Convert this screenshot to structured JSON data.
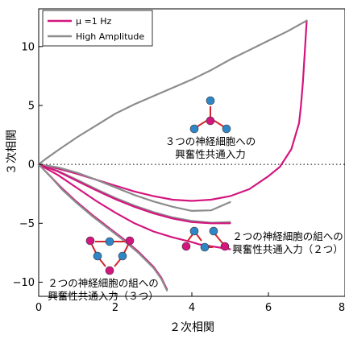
{
  "chart_data": {
    "type": "line",
    "xlabel": "２次相関",
    "ylabel": "３次相関",
    "xlim": [
      0,
      8
    ],
    "ylim": [
      -11.2,
      13.2
    ],
    "x_ticks": [
      "0",
      "2",
      "4",
      "6",
      "8"
    ],
    "y_ticks": [
      "10",
      "5",
      "0",
      "−5",
      "−10"
    ],
    "x_tick_values": [
      0,
      2,
      4,
      6,
      8
    ],
    "y_tick_values": [
      10,
      5,
      0,
      -5,
      -10
    ],
    "legend_placement": "top-left",
    "zero_line": "dotted",
    "colors": {
      "mu": "#d4157e",
      "high": "#8c8c8c",
      "node_blue": "#2f86c7",
      "node_pink": "#d4157e",
      "edge": "#d2262e"
    },
    "series": [
      {
        "name": "μ =1 Hz",
        "color": "#d4157e",
        "width": 2.2,
        "x": [
          0,
          0.5,
          1,
          1.5,
          2,
          2.5,
          3,
          3.5,
          4,
          4.5,
          5,
          5.5,
          6,
          6.3,
          6.6,
          6.8,
          6.85,
          6.9,
          6.95,
          7.0
        ],
        "y": [
          0,
          -0.35,
          -0.8,
          -1.3,
          -1.8,
          -2.3,
          -2.7,
          -3.0,
          -3.1,
          -3.0,
          -2.7,
          -2.1,
          -1.0,
          -0.2,
          1.3,
          3.5,
          5.0,
          7.0,
          9.5,
          12.2
        ]
      },
      {
        "name": "High Amplitude",
        "color": "#8c8c8c",
        "width": 2.2,
        "x": [
          0,
          0.2,
          0.5,
          1,
          1.5,
          2,
          2.5,
          3,
          3.5,
          4,
          4.5,
          5,
          5.5,
          6,
          6.5,
          7.0
        ],
        "y": [
          0,
          0.5,
          1.2,
          2.3,
          3.3,
          4.3,
          5.1,
          5.8,
          6.5,
          7.2,
          8.0,
          8.9,
          9.7,
          10.5,
          11.3,
          12.2
        ]
      },
      {
        "name": "",
        "color": "#8c8c8c",
        "width": 2.2,
        "x": [
          0,
          0.5,
          1,
          1.5,
          2,
          2.5,
          3,
          3.5,
          4,
          4.5,
          5
        ],
        "y": [
          0,
          -0.25,
          -0.7,
          -1.3,
          -1.95,
          -2.6,
          -3.15,
          -3.6,
          -3.95,
          -3.9,
          -3.2
        ]
      },
      {
        "name": "",
        "color": "#8c8c8c",
        "width": 2.2,
        "x": [
          0,
          0.5,
          1,
          1.5,
          2,
          2.5,
          3,
          3.5,
          4,
          4.5,
          5
        ],
        "y": [
          0,
          -0.55,
          -1.3,
          -2.1,
          -2.85,
          -3.5,
          -4.05,
          -4.5,
          -4.8,
          -4.95,
          -4.9
        ]
      },
      {
        "name": "",
        "color": "#d4157e",
        "width": 2.2,
        "x": [
          0,
          0.5,
          1,
          1.5,
          2,
          2.5,
          3,
          3.5,
          4,
          4.5,
          5
        ],
        "y": [
          0,
          -0.6,
          -1.4,
          -2.2,
          -2.95,
          -3.6,
          -4.15,
          -4.6,
          -4.9,
          -5.0,
          -5.0
        ]
      },
      {
        "name": "",
        "color": "#d4157e",
        "width": 2.2,
        "x": [
          0,
          0.5,
          1,
          1.5,
          2,
          2.5,
          3,
          3.5,
          4,
          4.2,
          4.4,
          4.6,
          4.8,
          5.0
        ],
        "y": [
          0,
          -0.9,
          -2.0,
          -3.1,
          -4.1,
          -5.0,
          -5.7,
          -6.2,
          -6.6,
          -6.8,
          -6.9,
          -7.0,
          -7.1,
          -7.2
        ]
      },
      {
        "name": "",
        "color": "#d4157e",
        "width": 2.2,
        "x": [
          0,
          0.3,
          0.6,
          1.0,
          1.4,
          1.8,
          2.2,
          2.6,
          3.0,
          3.2,
          3.35
        ],
        "y": [
          0,
          -1.0,
          -2.0,
          -3.2,
          -4.3,
          -5.3,
          -6.3,
          -7.4,
          -8.7,
          -9.6,
          -10.6
        ]
      },
      {
        "name": "",
        "color": "#8c8c8c",
        "width": 2.2,
        "x": [
          0,
          0.3,
          0.6,
          1.0,
          1.4,
          1.8,
          2.2,
          2.6,
          3.0,
          3.2,
          3.35
        ],
        "y": [
          0,
          -1.0,
          -2.1,
          -3.3,
          -4.4,
          -5.4,
          -6.4,
          -7.5,
          -8.8,
          -9.7,
          -10.7
        ]
      }
    ],
    "legend": [
      {
        "label": "μ =1 Hz",
        "color": "#d4157e"
      },
      {
        "label": "High Amplitude",
        "color": "#8c8c8c"
      }
    ],
    "annotations": [
      {
        "id": "anno1",
        "lines": [
          "３つの神経細胞への",
          "興奮性共通入力"
        ],
        "anchor_data": [
          4.45,
          2.25
        ]
      },
      {
        "id": "anno2",
        "lines": [
          "２つの神経細胞の組への",
          "興奮性共通入力（２つ）"
        ],
        "anchor_data": [
          6.65,
          -6.1
        ]
      },
      {
        "id": "anno3",
        "lines": [
          "２つの神経細胞の組への",
          "興奮性共通入力（３つ）"
        ],
        "anchor_data": [
          1.45,
          -10.2
        ]
      }
    ]
  }
}
